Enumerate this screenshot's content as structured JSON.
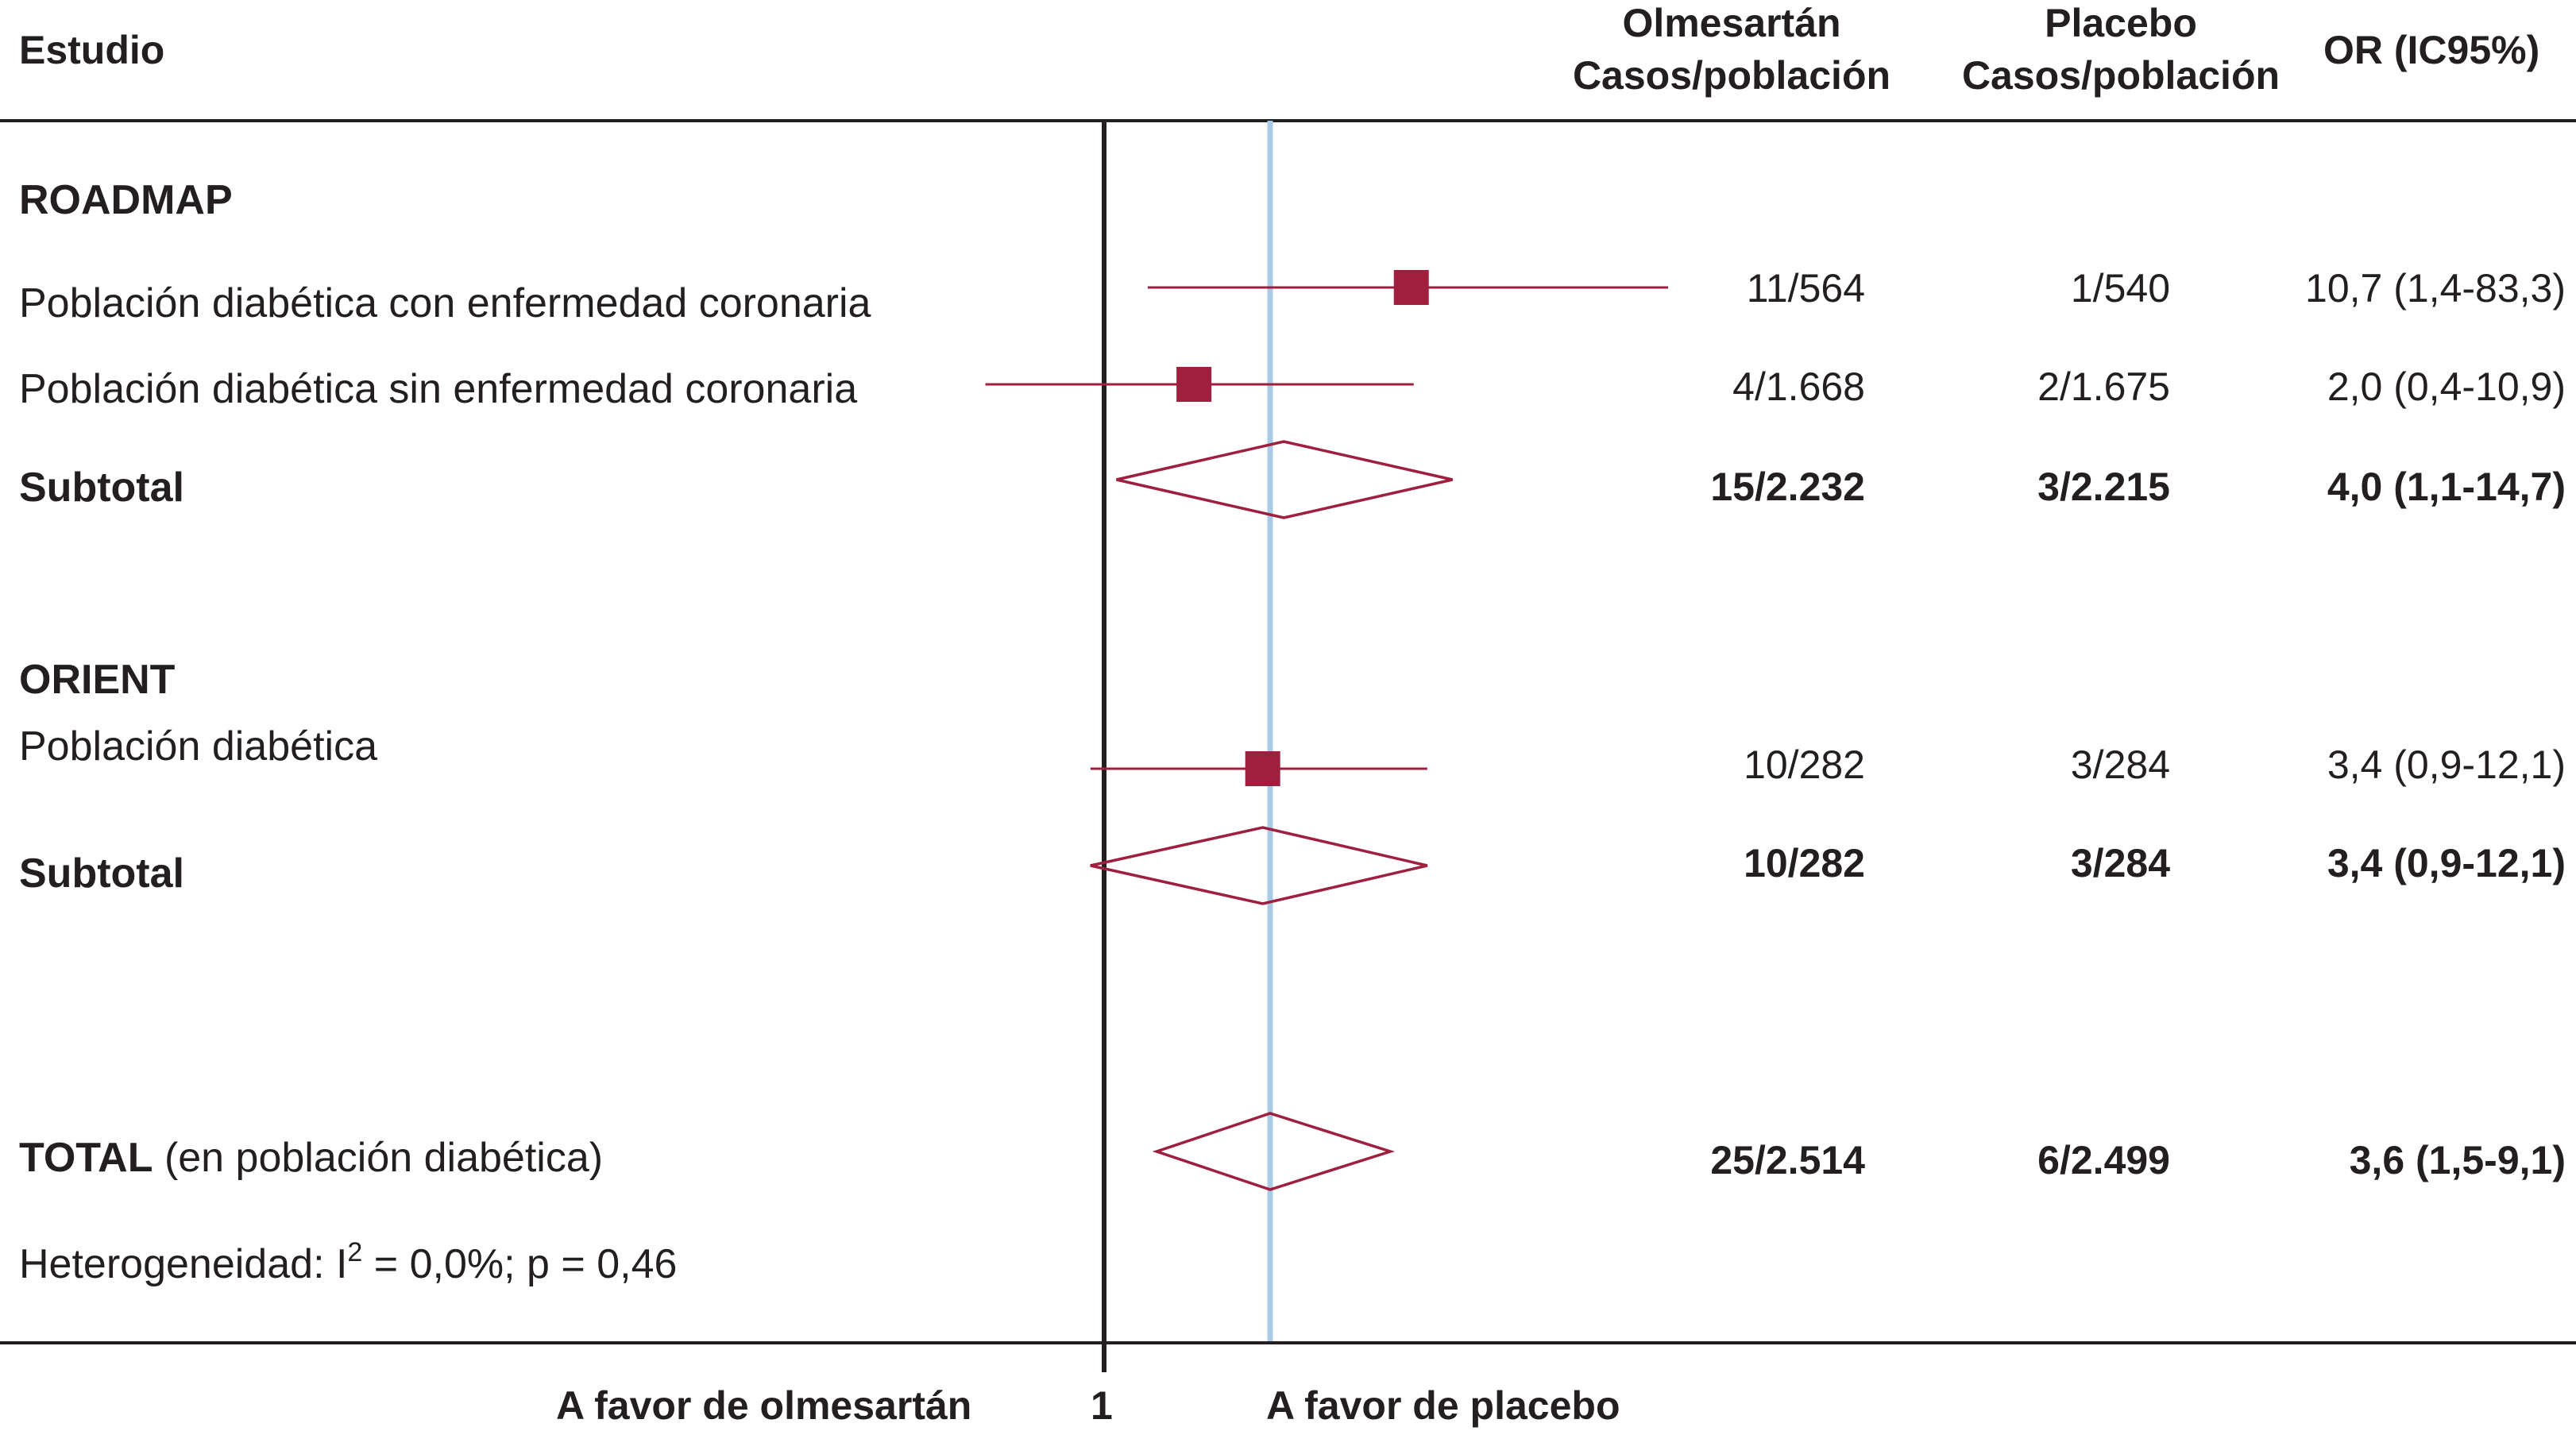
{
  "header": {
    "study_label": "Estudio",
    "olmesartan_line1": "Olmesartán",
    "olmesartan_line2": "Casos/población",
    "placebo_line1": "Placebo",
    "placebo_line2": "Casos/población",
    "or_label": "OR (IC95%)"
  },
  "sections": {
    "roadmap": "ROADMAP",
    "orient": "ORIENT"
  },
  "rows": [
    {
      "label": "Población diabética con enfermedad coronaria",
      "olmesartan": "11/564",
      "placebo": "1/540",
      "or_text": "10,7 (1,4-83,3)"
    },
    {
      "label": "Población diabética sin enfermedad coronaria",
      "olmesartan": "4/1.668",
      "placebo": "2/1.675",
      "or_text": "2,0 (0,4-10,9)"
    },
    {
      "label": "Subtotal",
      "olmesartan": "15/2.232",
      "placebo": "3/2.215",
      "or_text": "4,0 (1,1-14,7)"
    },
    {
      "label": "Población diabética",
      "olmesartan": "10/282",
      "placebo": "3/284",
      "or_text": "3,4 (0,9-12,1)"
    },
    {
      "label": "Subtotal",
      "olmesartan": "10/282",
      "placebo": "3/284",
      "or_text": "3,4 (0,9-12,1)"
    },
    {
      "label_bold": "TOTAL",
      "label_rest": " (en población diabética)",
      "olmesartan": "25/2.514",
      "placebo": "6/2.499",
      "or_text": "3,6 (1,5-9,1)"
    }
  ],
  "heterogeneity": {
    "prefix": "Heterogeneidad: I",
    "sup": "2",
    "suffix": " = 0,0%; p = 0,46"
  },
  "axis": {
    "left_label": "A favor de olmesartán",
    "null_label": "1",
    "right_label": "A favor de placebo"
  },
  "colors": {
    "marker": "#9e1f3e",
    "pooled_line": "#a9cbe6",
    "text": "#231f20"
  },
  "chart_data": {
    "type": "forest",
    "scale": "log",
    "null_value": 1,
    "pooled_or": 3.6,
    "studies": [
      {
        "name": "Población diabética con enfermedad coronaria",
        "kind": "study",
        "or": 10.7,
        "lo": 1.4,
        "hi": 83.3
      },
      {
        "name": "Población diabética sin enfermedad coronaria",
        "kind": "study",
        "or": 2.0,
        "lo": 0.4,
        "hi": 10.9
      },
      {
        "name": "Subtotal",
        "kind": "summary",
        "or": 4.0,
        "lo": 1.1,
        "hi": 14.7
      },
      {
        "name": "Población diabética",
        "kind": "study",
        "or": 3.4,
        "lo": 0.9,
        "hi": 12.1
      },
      {
        "name": "Subtotal",
        "kind": "summary",
        "or": 3.4,
        "lo": 0.9,
        "hi": 12.1
      },
      {
        "name": "TOTAL",
        "kind": "summary",
        "or": 3.6,
        "lo": 1.5,
        "hi": 9.1
      }
    ]
  }
}
